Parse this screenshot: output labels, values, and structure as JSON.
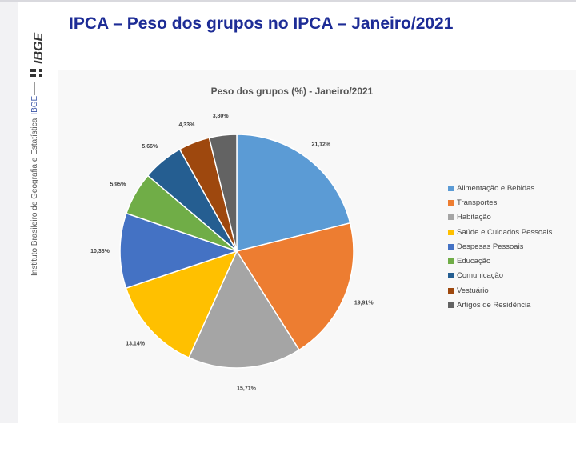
{
  "header": {
    "title": "IPCA – Peso dos grupos no IPCA – Janeiro/2021"
  },
  "branding": {
    "logo_text": "IBGE",
    "caption": "Instituto Brasileiro de Geografia e Estatística",
    "caption_accent": "IBGE"
  },
  "chart_data": {
    "type": "pie",
    "title": "Peso dos grupos (%) - Janeiro/2021",
    "legend_position": "right",
    "categories": [
      "Alimentação e Bebidas",
      "Transportes",
      "Habitação",
      "Saúde e Cuidados Pessoais",
      "Despesas Pessoais",
      "Educação",
      "Comunicação",
      "Vestuário",
      "Artigos de Residência"
    ],
    "values": [
      21.12,
      19.91,
      15.71,
      13.14,
      10.38,
      5.95,
      5.66,
      4.33,
      3.8
    ],
    "labels": [
      "21,12%",
      "19,91%",
      "15,71%",
      "13,14%",
      "10,38%",
      "5,95%",
      "5,66%",
      "4,33%",
      "3,80%"
    ],
    "colors": [
      "#5b9bd5",
      "#ed7d31",
      "#a5a5a5",
      "#ffc000",
      "#4472c4",
      "#70ad47",
      "#255e91",
      "#9e480e",
      "#636363"
    ]
  }
}
